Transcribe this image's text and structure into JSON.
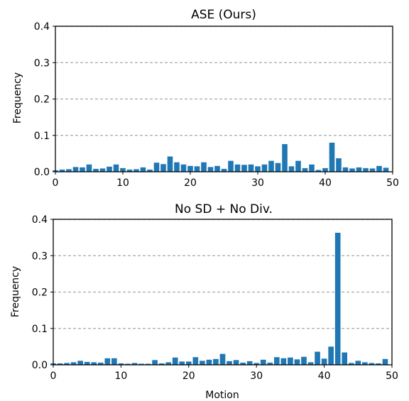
{
  "chart_data": [
    {
      "type": "bar",
      "title": "ASE (Ours)",
      "xlabel": "",
      "ylabel": "Frequency",
      "xlim": [
        0,
        50
      ],
      "ylim": [
        0,
        0.4
      ],
      "xticks": [
        0,
        10,
        20,
        30,
        40,
        50
      ],
      "yticks": [
        0.0,
        0.1,
        0.2,
        0.3,
        0.4
      ],
      "grid": "horizontal dashed",
      "bar_color": "#1f77b4",
      "x": [
        0,
        1,
        2,
        3,
        4,
        5,
        6,
        7,
        8,
        9,
        10,
        11,
        12,
        13,
        14,
        15,
        16,
        17,
        18,
        19,
        20,
        21,
        22,
        23,
        24,
        25,
        26,
        27,
        28,
        29,
        30,
        31,
        32,
        33,
        34,
        35,
        36,
        37,
        38,
        39,
        40,
        41,
        42,
        43,
        44,
        45,
        46,
        47,
        48,
        49
      ],
      "values": [
        0.004,
        0.006,
        0.007,
        0.013,
        0.012,
        0.02,
        0.008,
        0.009,
        0.014,
        0.02,
        0.01,
        0.006,
        0.007,
        0.012,
        0.006,
        0.025,
        0.021,
        0.042,
        0.026,
        0.02,
        0.016,
        0.015,
        0.026,
        0.013,
        0.016,
        0.008,
        0.03,
        0.02,
        0.019,
        0.02,
        0.015,
        0.02,
        0.03,
        0.024,
        0.076,
        0.015,
        0.03,
        0.01,
        0.02,
        0.005,
        0.01,
        0.08,
        0.037,
        0.012,
        0.009,
        0.012,
        0.01,
        0.009,
        0.016,
        0.011
      ]
    },
    {
      "type": "bar",
      "title": "No SD + No Div.",
      "xlabel": "Motion",
      "ylabel": "Frequency",
      "xlim": [
        0,
        50
      ],
      "ylim": [
        0,
        0.4
      ],
      "xticks": [
        0,
        10,
        20,
        30,
        40,
        50
      ],
      "yticks": [
        0.0,
        0.1,
        0.2,
        0.3,
        0.4
      ],
      "grid": "horizontal dashed",
      "bar_color": "#1f77b4",
      "x": [
        0,
        1,
        2,
        3,
        4,
        5,
        6,
        7,
        8,
        9,
        10,
        11,
        12,
        13,
        14,
        15,
        16,
        17,
        18,
        19,
        20,
        21,
        22,
        23,
        24,
        25,
        26,
        27,
        28,
        29,
        30,
        31,
        32,
        33,
        34,
        35,
        36,
        37,
        38,
        39,
        40,
        41,
        42,
        43,
        44,
        45,
        46,
        47,
        48,
        49
      ],
      "values": [
        0.004,
        0.004,
        0.005,
        0.007,
        0.011,
        0.008,
        0.007,
        0.006,
        0.018,
        0.018,
        0.004,
        0.003,
        0.005,
        0.003,
        0.003,
        0.013,
        0.004,
        0.007,
        0.02,
        0.009,
        0.009,
        0.021,
        0.011,
        0.014,
        0.016,
        0.03,
        0.01,
        0.013,
        0.006,
        0.01,
        0.005,
        0.014,
        0.006,
        0.021,
        0.018,
        0.02,
        0.015,
        0.022,
        0.007,
        0.036,
        0.017,
        0.05,
        0.363,
        0.034,
        0.005,
        0.011,
        0.007,
        0.005,
        0.004,
        0.016
      ]
    }
  ]
}
